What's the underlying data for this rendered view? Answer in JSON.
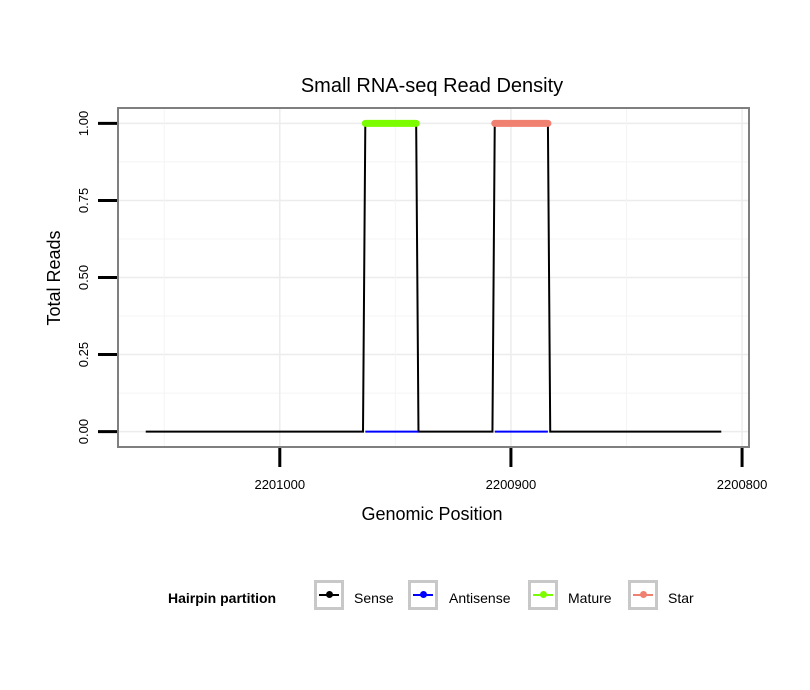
{
  "chart_data": {
    "type": "line",
    "title": "Small RNA-seq Read Density",
    "xlabel": "Genomic Position",
    "ylabel": "Total Reads",
    "x_reversed": true,
    "xlim": [
      2201070,
      2200797
    ],
    "ylim": [
      -0.05,
      1.05
    ],
    "xticks": [
      2201000,
      2200900,
      2200800
    ],
    "xtick_labels": [
      "2201000",
      "2200900",
      "2200800"
    ],
    "yticks": [
      0,
      0.25,
      0.5,
      0.75,
      1.0
    ],
    "ytick_labels": [
      "0.00",
      "0.25",
      "0.50",
      "0.75",
      "1.00"
    ],
    "series": [
      {
        "name": "Sense",
        "color": "#000000",
        "points": [
          [
            2201058,
            0
          ],
          [
            2200964,
            0
          ],
          [
            2200963,
            1
          ],
          [
            2200941,
            1
          ],
          [
            2200940,
            0
          ],
          [
            2200908,
            0
          ],
          [
            2200907,
            1
          ],
          [
            2200884,
            1
          ],
          [
            2200883,
            0
          ],
          [
            2200809,
            0
          ]
        ]
      },
      {
        "name": "Antisense",
        "color": "#0000ff",
        "points": [
          [
            2200963,
            0
          ],
          [
            2200940,
            0
          ],
          [
            2200907,
            0
          ],
          [
            2200884,
            0
          ]
        ]
      },
      {
        "name": "Mature",
        "color": "#7cfc00",
        "points": [
          [
            2200963,
            1
          ],
          [
            2200941,
            1
          ]
        ]
      },
      {
        "name": "Star",
        "color": "#f08070",
        "points": [
          [
            2200907,
            1
          ],
          [
            2200884,
            1
          ]
        ]
      }
    ],
    "legend": {
      "title": "Hairpin partition",
      "position": "bottom",
      "entries": [
        "Sense",
        "Antisense",
        "Mature",
        "Star"
      ]
    }
  }
}
